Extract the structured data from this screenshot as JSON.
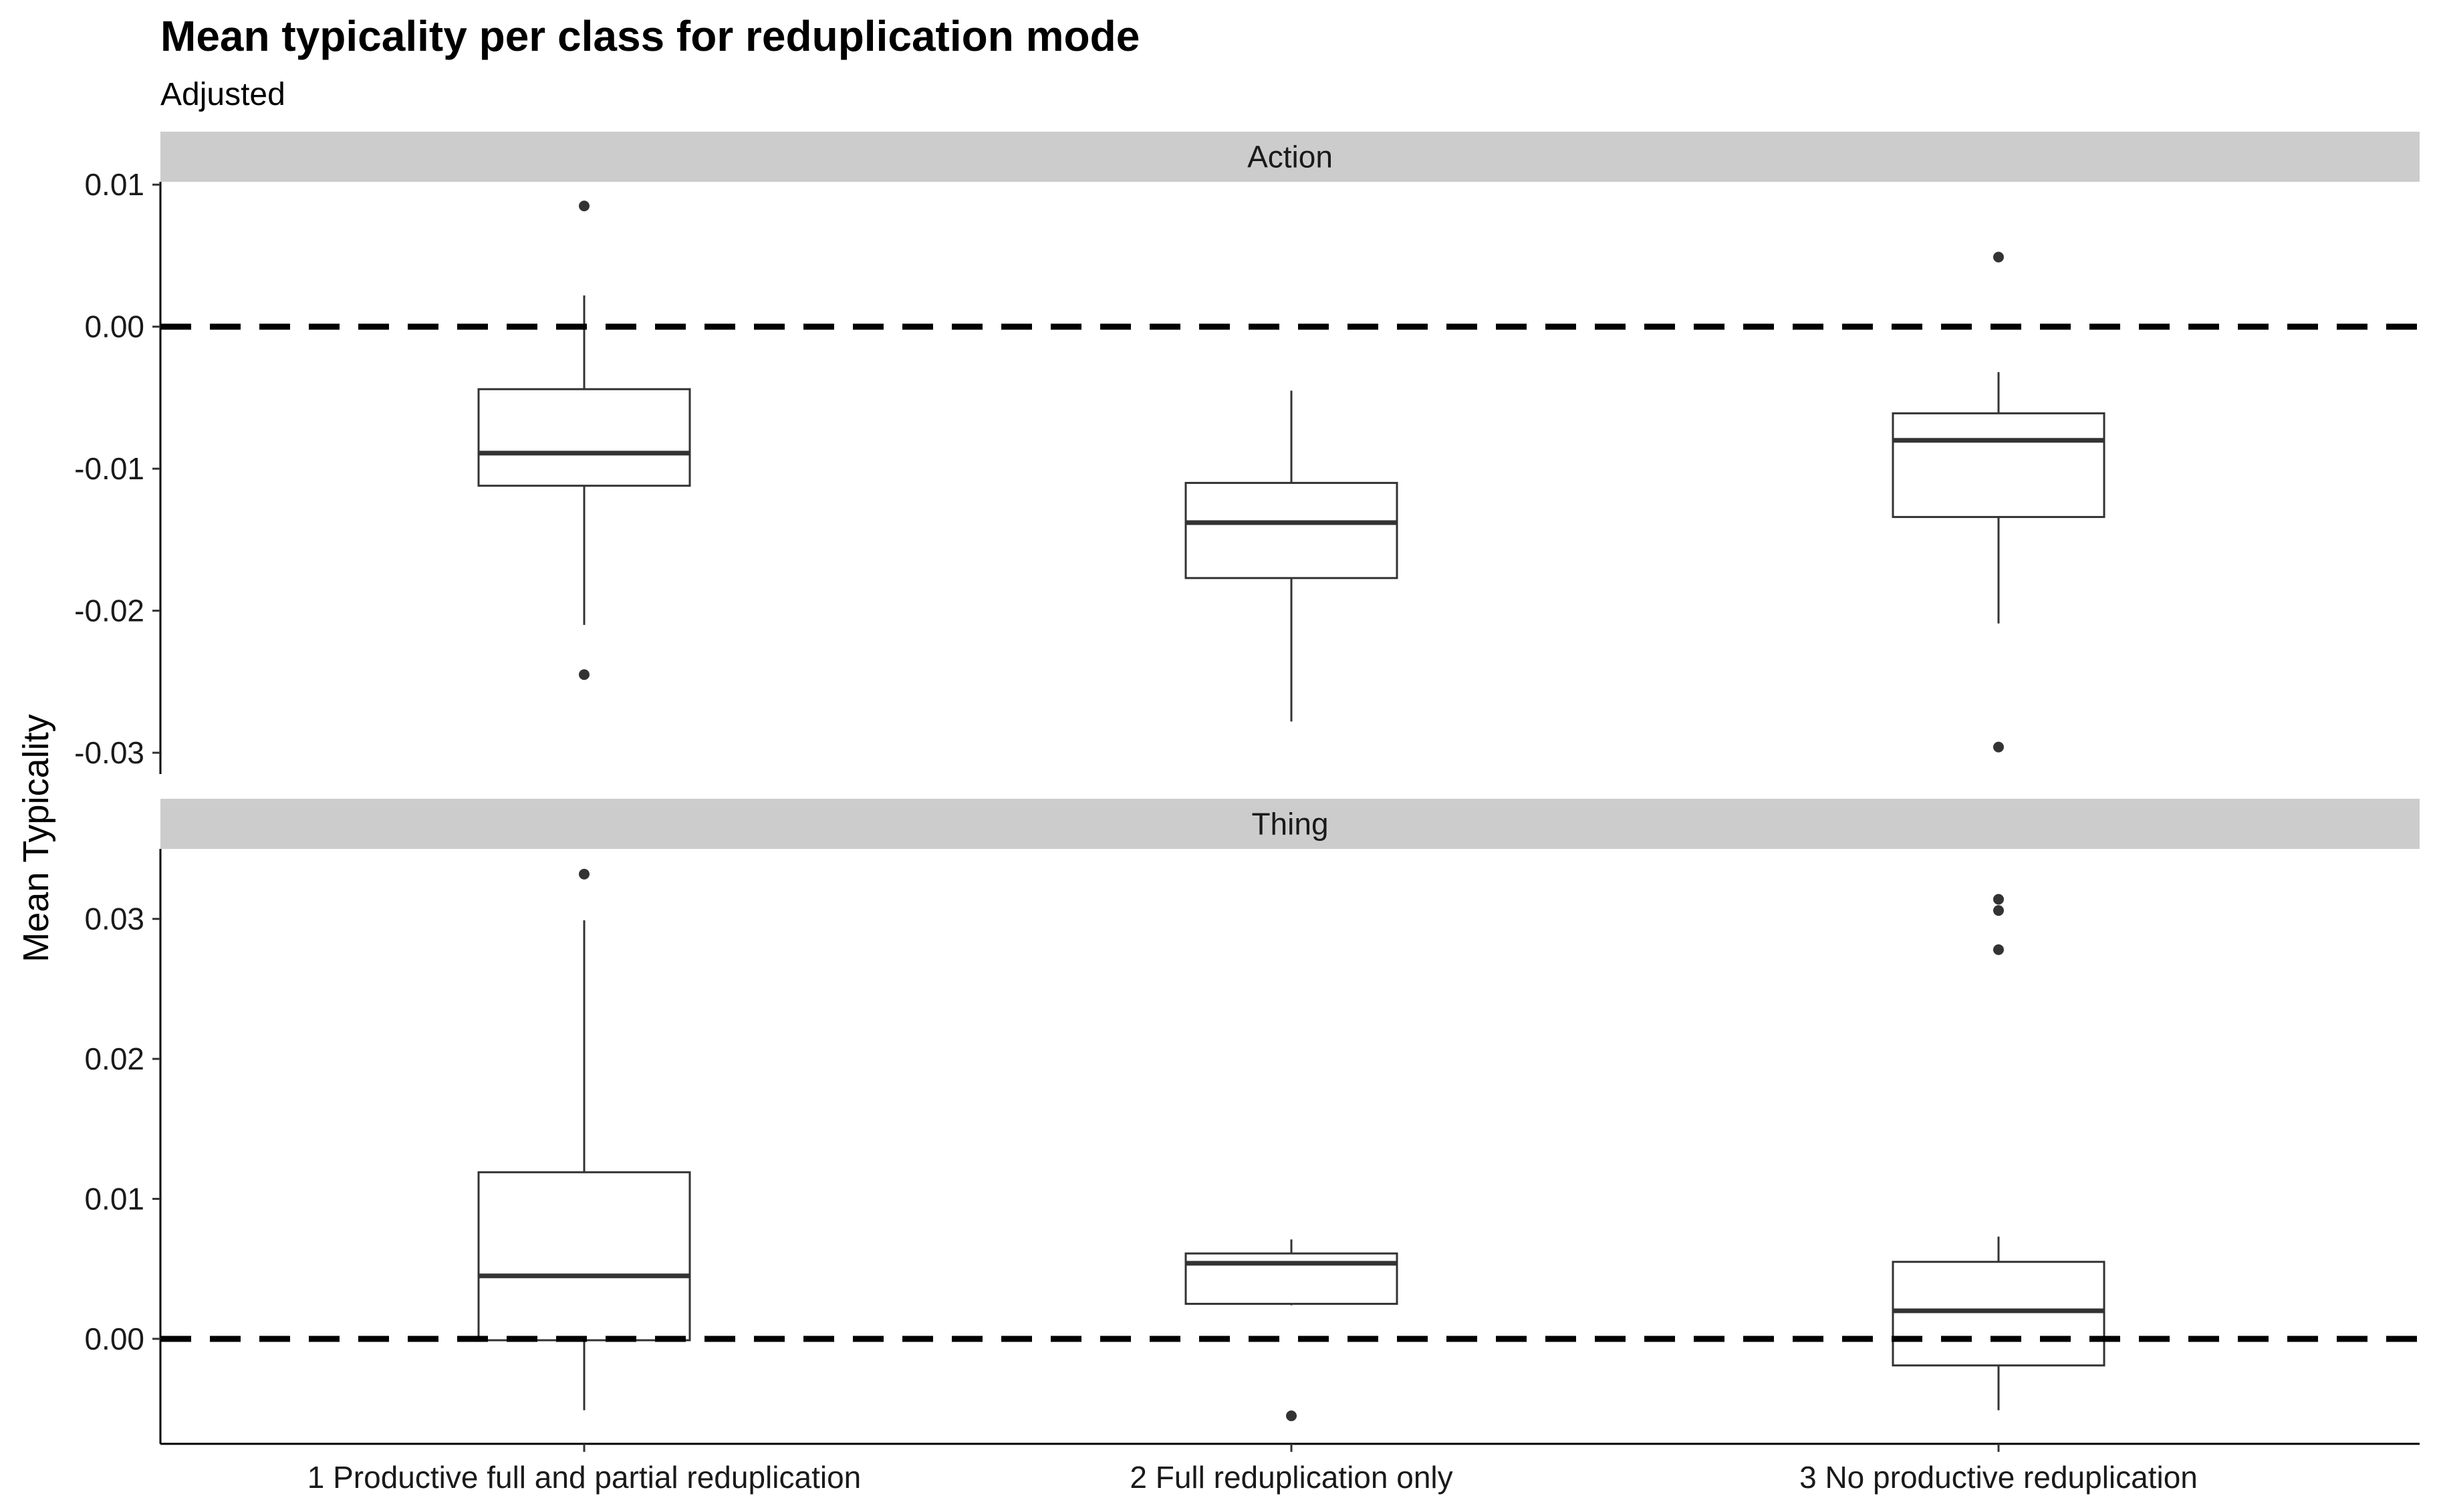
{
  "chart_data": {
    "type": "boxplot",
    "title": "Mean typicality per class for reduplication mode",
    "subtitle": "Adjusted",
    "ylabel": "Mean Typicality",
    "xlabel": "",
    "categories": [
      "1 Productive full and partial reduplication",
      "2 Full reduplication only",
      "3 No productive reduplication"
    ],
    "reference_line": {
      "y": 0,
      "style": "dashed"
    },
    "grid": false,
    "panels": [
      {
        "label": "Action",
        "ylim": [
          -0.0315,
          0.0102
        ],
        "yticks": [
          0.01,
          0.0,
          -0.01,
          -0.02,
          -0.03
        ],
        "ytick_labels": [
          "0.01",
          "0.00",
          "-0.01",
          "-0.02",
          "-0.03"
        ],
        "boxes": [
          {
            "category": "1 Productive full and partial reduplication",
            "lower_whisker": -0.021,
            "q1": -0.0112,
            "median": -0.0089,
            "q3": -0.0044,
            "upper_whisker": 0.0022,
            "outliers": [
              0.0085,
              -0.0245
            ]
          },
          {
            "category": "2 Full reduplication only",
            "lower_whisker": -0.0278,
            "q1": -0.0177,
            "median": -0.0138,
            "q3": -0.011,
            "upper_whisker": -0.0045,
            "outliers": []
          },
          {
            "category": "3 No productive reduplication",
            "lower_whisker": -0.0209,
            "q1": -0.0134,
            "median": -0.008,
            "q3": -0.0061,
            "upper_whisker": -0.0032,
            "outliers": [
              0.0049,
              -0.0296
            ]
          }
        ]
      },
      {
        "label": "Thing",
        "ylim": [
          -0.0075,
          0.035
        ],
        "yticks": [
          0.03,
          0.02,
          0.01,
          0.0
        ],
        "ytick_labels": [
          "0.03",
          "0.02",
          "0.01",
          "0.00"
        ],
        "boxes": [
          {
            "category": "1 Productive full and partial reduplication",
            "lower_whisker": -0.0051,
            "q1": -0.0001,
            "median": 0.0045,
            "q3": 0.0119,
            "upper_whisker": 0.0299,
            "outliers": [
              0.0332
            ]
          },
          {
            "category": "2 Full reduplication only",
            "lower_whisker": 0.0024,
            "q1": 0.0025,
            "median": 0.0054,
            "q3": 0.0061,
            "upper_whisker": 0.0071,
            "outliers": [
              -0.0055
            ]
          },
          {
            "category": "3 No productive reduplication",
            "lower_whisker": -0.0051,
            "q1": -0.0019,
            "median": 0.002,
            "q3": 0.0055,
            "upper_whisker": 0.0073,
            "outliers": [
              0.0314,
              0.0306,
              0.0278
            ]
          }
        ]
      }
    ]
  }
}
